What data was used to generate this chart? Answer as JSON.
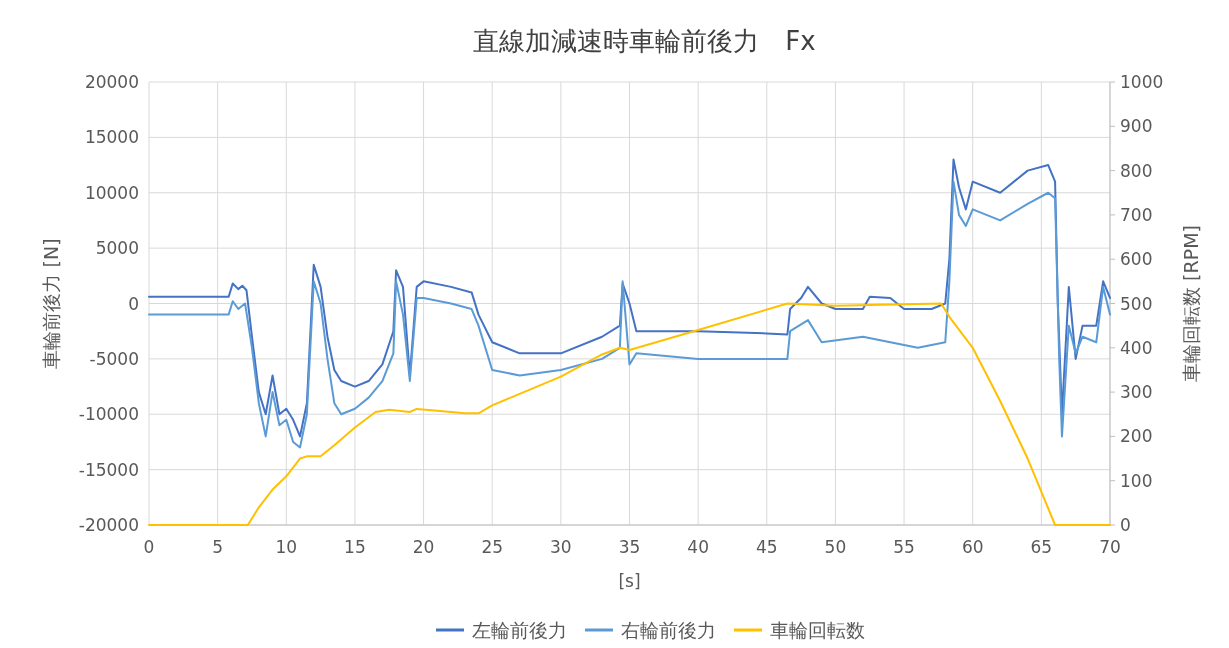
{
  "chart_data": {
    "type": "line",
    "title": "直線加減速時車輪前後力　Fx",
    "xlabel": "[s]",
    "ylabel": "車輪前後力 [N]",
    "y2label": "車輪回転数 [RPM]",
    "xlim": [
      0,
      70
    ],
    "xticks": [
      0,
      5,
      10,
      15,
      20,
      25,
      30,
      35,
      40,
      45,
      50,
      55,
      60,
      65,
      70
    ],
    "ylim": [
      -20000,
      20000
    ],
    "yticks": [
      -20000,
      -15000,
      -10000,
      -5000,
      0,
      5000,
      10000,
      15000,
      20000
    ],
    "y2lim": [
      0,
      1000
    ],
    "y2ticks": [
      0,
      100,
      200,
      300,
      400,
      500,
      600,
      700,
      800,
      900,
      1000
    ],
    "grid": true,
    "legend": "bottom",
    "series": [
      {
        "name": "左輪前後力",
        "color": "#4472c4",
        "x": [
          0,
          5.8,
          6.1,
          6.5,
          6.8,
          7.1,
          7.5,
          8,
          8.5,
          9,
          9.5,
          10,
          10.5,
          11,
          11.5,
          12,
          12.5,
          13,
          13.5,
          14,
          15,
          16,
          17,
          17.8,
          18,
          18.5,
          19,
          19.5,
          20,
          22,
          23.5,
          24,
          25,
          27,
          30,
          33,
          34.3,
          34.5,
          35,
          35.5,
          40,
          45,
          46.5,
          46.7,
          47.5,
          48,
          49,
          50,
          52,
          52.5,
          54,
          55,
          57,
          58,
          58.3,
          58.6,
          59,
          59.5,
          60,
          62,
          64,
          65.5,
          66,
          66.2,
          66.5,
          67,
          67.5,
          68,
          69,
          69.5,
          70
        ],
        "values": [
          600,
          600,
          1800,
          1300,
          1600,
          1200,
          -3000,
          -8000,
          -10000,
          -6500,
          -10000,
          -9500,
          -10500,
          -12000,
          -9000,
          3500,
          1500,
          -3000,
          -6000,
          -7000,
          -7500,
          -7000,
          -5500,
          -2500,
          3000,
          1500,
          -6500,
          1500,
          2000,
          1500,
          1000,
          -1000,
          -3500,
          -4500,
          -4500,
          -3000,
          -2000,
          1800,
          0,
          -2500,
          -2500,
          -2700,
          -2800,
          -500,
          500,
          1500,
          0,
          -500,
          -500,
          600,
          500,
          -500,
          -500,
          0,
          4000,
          13000,
          10500,
          8500,
          11000,
          10000,
          12000,
          12500,
          11000,
          0,
          -10000,
          1500,
          -5000,
          -2000,
          -2000,
          2000,
          500
        ]
      },
      {
        "name": "右輪前後力",
        "color": "#5b9bd5",
        "x": [
          0,
          5.8,
          6.1,
          6.5,
          7,
          7.5,
          8,
          8.5,
          9,
          9.5,
          10,
          10.5,
          11,
          11.5,
          12,
          12.5,
          13,
          13.5,
          14,
          15,
          16,
          17,
          17.8,
          18,
          18.5,
          19,
          19.5,
          20,
          22,
          23.5,
          24,
          25,
          27,
          30,
          33,
          34.3,
          34.5,
          35,
          35.5,
          40,
          45,
          46.5,
          46.7,
          48,
          49,
          52,
          54,
          56,
          58,
          58.3,
          58.6,
          59,
          59.5,
          60,
          62,
          64,
          65.5,
          66,
          66.3,
          66.5,
          67,
          67.5,
          68,
          69,
          69.5,
          70
        ],
        "values": [
          -1000,
          -1000,
          200,
          -500,
          0,
          -4000,
          -9000,
          -12000,
          -8000,
          -11000,
          -10500,
          -12500,
          -13000,
          -10000,
          2000,
          0,
          -5000,
          -9000,
          -10000,
          -9500,
          -8500,
          -7000,
          -4500,
          2000,
          -1000,
          -7000,
          500,
          500,
          0,
          -500,
          -2000,
          -6000,
          -6500,
          -6000,
          -5000,
          -4000,
          2000,
          -5500,
          -4500,
          -5000,
          -5000,
          -5000,
          -2500,
          -1500,
          -3500,
          -3000,
          -3500,
          -4000,
          -3500,
          2000,
          11000,
          8000,
          7000,
          8500,
          7500,
          9000,
          10000,
          9500,
          -5000,
          -12000,
          -2000,
          -4500,
          -3000,
          -3500,
          1500,
          -1000
        ]
      },
      {
        "name": "車輪回転数",
        "color": "#ffc000",
        "axis": "y2",
        "x": [
          0,
          7.2,
          8,
          9,
          10,
          11,
          11.5,
          12.5,
          13.5,
          15,
          16.5,
          17.5,
          19,
          19.5,
          21,
          23,
          24,
          25,
          30,
          33,
          34.3,
          35,
          40,
          46.5,
          50,
          57.7,
          58.3,
          60,
          62,
          64,
          66,
          70
        ],
        "values": [
          0,
          0,
          40,
          80,
          110,
          150,
          155,
          155,
          180,
          220,
          255,
          260,
          255,
          262,
          258,
          252,
          252,
          270,
          335,
          385,
          400,
          395,
          440,
          500,
          495,
          500,
          470,
          400,
          280,
          150,
          0,
          0
        ]
      }
    ]
  }
}
